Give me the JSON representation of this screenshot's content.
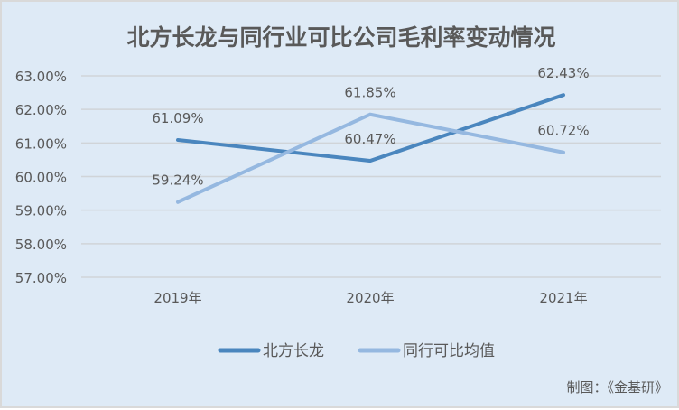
{
  "chart_data": {
    "type": "line",
    "title": "北方长龙与同行业可比公司毛利率变动情况",
    "categories": [
      "2019年",
      "2020年",
      "2021年"
    ],
    "series": [
      {
        "name": "北方长龙",
        "values": [
          61.09,
          60.47,
          62.43
        ],
        "labels": [
          "61.09%",
          "60.47%",
          "62.43%"
        ],
        "color": "#4a86be"
      },
      {
        "name": "同行可比均值",
        "values": [
          59.24,
          61.85,
          60.72
        ],
        "labels": [
          "59.24%",
          "61.85%",
          "60.72%"
        ],
        "color": "#95b8e0"
      }
    ],
    "ylim": [
      57,
      63
    ],
    "yticks": [
      57,
      58,
      59,
      60,
      61,
      62,
      63
    ],
    "ytick_labels": [
      "57.00%",
      "58.00%",
      "59.00%",
      "60.00%",
      "61.00%",
      "62.00%",
      "63.00%"
    ],
    "grid": true,
    "legend": "bottom"
  },
  "footer": "制图：《金基研》"
}
